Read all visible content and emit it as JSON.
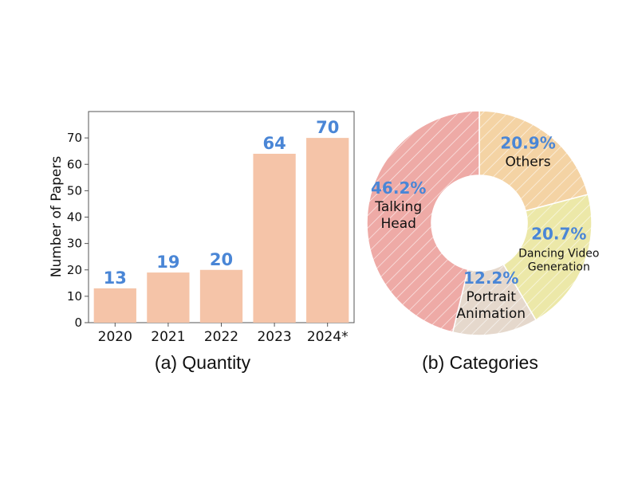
{
  "captions": {
    "left": "(a) Quantity",
    "right": "(b) Categories"
  },
  "colors": {
    "bar_fill": "#f5c4a8",
    "value_label": "#4a86d6",
    "axis": "#555555",
    "slices": [
      "#f4d3a4",
      "#ece8a8",
      "#e5d8cc",
      "#eeaaa6"
    ],
    "hatch": "#ffffff"
  },
  "chart_data": [
    {
      "type": "bar",
      "categories": [
        "2020",
        "2021",
        "2022",
        "2023",
        "2024*"
      ],
      "values": [
        13,
        19,
        20,
        64,
        70
      ],
      "data_labels": [
        "13",
        "19",
        "20",
        "64",
        "70"
      ],
      "title": "",
      "xlabel": "",
      "ylabel": "Number of Papers",
      "ylim": [
        0,
        80
      ],
      "yticks": [
        0,
        10,
        20,
        30,
        40,
        50,
        60,
        70
      ],
      "ytick_labels": [
        "0",
        "10",
        "20",
        "30",
        "40",
        "50",
        "60",
        "70"
      ],
      "grid": false
    },
    {
      "type": "pie",
      "donut": true,
      "hatched": true,
      "slices": [
        {
          "name_lines": [
            "Others"
          ],
          "percent_label": "20.9%",
          "value": 20.9
        },
        {
          "name_lines": [
            "Dancing Video",
            "Generation"
          ],
          "percent_label": "20.7%",
          "value": 20.7
        },
        {
          "name_lines": [
            "Portrait",
            "Animation"
          ],
          "percent_label": "12.2%",
          "value": 12.2
        },
        {
          "name_lines": [
            "Talking",
            "Head"
          ],
          "percent_label": "46.2%",
          "value": 46.2
        }
      ]
    }
  ]
}
